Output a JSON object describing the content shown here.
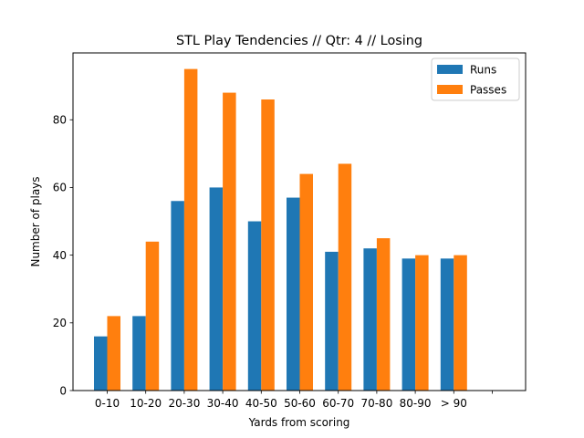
{
  "chart_data": {
    "type": "bar",
    "title": "STL Play Tendencies // Qtr: 4 // Losing",
    "xlabel": "Yards from scoring",
    "ylabel": "Number of plays",
    "categories": [
      "0-10",
      "10-20",
      "20-30",
      "30-40",
      "40-50",
      "50-60",
      "60-70",
      "70-80",
      "80-90",
      "> 90"
    ],
    "series": [
      {
        "name": "Runs",
        "color": "#1f77b4",
        "values": [
          16,
          22,
          56,
          60,
          50,
          57,
          41,
          42,
          39,
          39
        ]
      },
      {
        "name": "Passes",
        "color": "#ff7f0e",
        "values": [
          22,
          44,
          95,
          88,
          86,
          64,
          67,
          45,
          40,
          40
        ]
      }
    ],
    "ylim": [
      0,
      99.75
    ],
    "yticks": [
      0,
      20,
      40,
      60,
      80
    ],
    "grid": false,
    "legend_position": "upper right"
  }
}
